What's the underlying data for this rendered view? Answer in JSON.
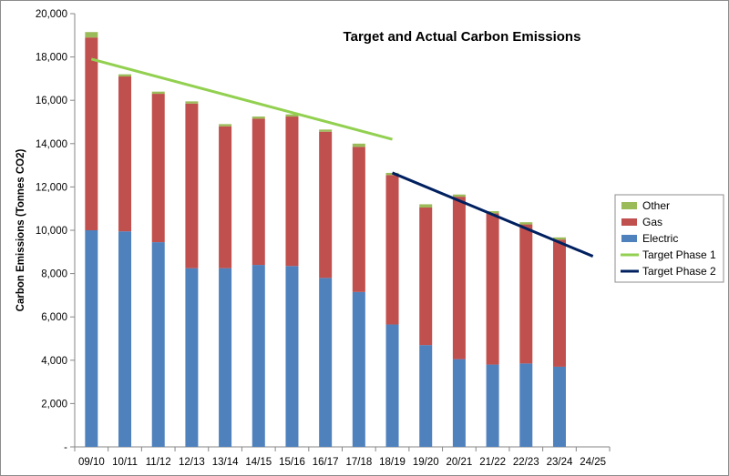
{
  "chart_data": {
    "type": "bar",
    "stacked": true,
    "title": "Target and Actual Carbon Emissions",
    "xlabel": "",
    "ylabel": "Carbon Emissions  (Tonnes CO2)",
    "ylim": [
      0,
      20000
    ],
    "yticks": [
      "-",
      "2,000",
      "4,000",
      "6,000",
      "8,000",
      "10,000",
      "12,000",
      "14,000",
      "16,000",
      "18,000",
      "20,000"
    ],
    "categories": [
      "09/10",
      "10/11",
      "11/12",
      "12/13",
      "13/14",
      "14/15",
      "15/16",
      "16/17",
      "17/18",
      "18/19",
      "19/20",
      "20/21",
      "21/22",
      "22/23",
      "23/24",
      "24/25"
    ],
    "series": [
      {
        "name": "Electric",
        "color": "#4f81bd",
        "values": [
          10000,
          9950,
          9450,
          8250,
          8250,
          8400,
          8350,
          7800,
          7150,
          5650,
          4700,
          4050,
          3800,
          3850,
          3700,
          null
        ]
      },
      {
        "name": "Gas",
        "color": "#c0504d",
        "values": [
          8900,
          7150,
          6850,
          7600,
          6550,
          6750,
          6900,
          6750,
          6700,
          6900,
          6350,
          7500,
          6980,
          6420,
          5870,
          null
        ]
      },
      {
        "name": "Other",
        "color": "#9bbb59",
        "values": [
          250,
          100,
          100,
          100,
          100,
          100,
          100,
          100,
          150,
          100,
          150,
          100,
          100,
          100,
          100,
          null
        ]
      }
    ],
    "lines": [
      {
        "name": "Target Phase 1",
        "color": "#92d050",
        "points": [
          [
            "09/10",
            17900
          ],
          [
            "18/19",
            14200
          ]
        ]
      },
      {
        "name": "Target Phase 2",
        "color": "#002060",
        "points": [
          [
            "18/19",
            12650
          ],
          [
            "24/25",
            8800
          ]
        ]
      }
    ],
    "legend": {
      "position": "right",
      "entries": [
        {
          "label": "Other",
          "kind": "bar",
          "color": "#9bbb59"
        },
        {
          "label": "Gas",
          "kind": "bar",
          "color": "#c0504d"
        },
        {
          "label": "Electric",
          "kind": "bar",
          "color": "#4f81bd"
        },
        {
          "label": "Target Phase 1",
          "kind": "line",
          "color": "#92d050"
        },
        {
          "label": "Target Phase 2",
          "kind": "line",
          "color": "#002060"
        }
      ]
    }
  }
}
